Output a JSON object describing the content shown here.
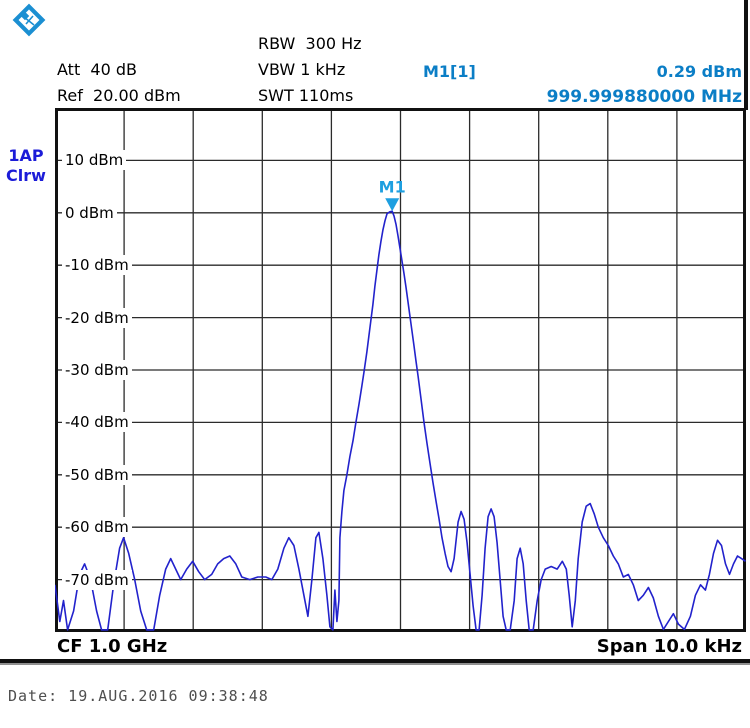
{
  "header": {
    "att": "Att  40 dB",
    "ref": "Ref  20.00 dBm",
    "rbw": "RBW  300 Hz",
    "vbw": "VBW 1 kHz",
    "swt": "SWT 110ms"
  },
  "marker_readout": {
    "name": "M1[1]",
    "amplitude": "0.29 dBm",
    "frequency": "999.999880000 MHz"
  },
  "trace_label": {
    "line1": "1AP",
    "line2": "Clrw"
  },
  "footer": {
    "cf": "CF 1.0 GHz",
    "span": "Span 10.0 kHz",
    "date": "Date: 19.AUG.2016  09:38:48"
  },
  "colors": {
    "trace": "#2222cc",
    "marker": "#1e9fe0",
    "marker_text": "#0b7ec6",
    "trace_label": "#1c1cd8",
    "grid": "#2b2b2b",
    "date_text": "#4f4f4f",
    "logo_blue": "#1b8fd2"
  },
  "icons": {
    "logo": "rohde-schwarz-logo"
  },
  "chart_data": {
    "type": "line",
    "title": "Spectrum analyzer sweep",
    "x_axis": {
      "center_label": "CF 1.0 GHz",
      "span_label": "Span 10.0 kHz",
      "span_hz": 10000,
      "divisions": 10,
      "grid": true
    },
    "y_axis": {
      "unit": "dBm",
      "ref_dbm": 20,
      "db_per_div": 10,
      "divisions": 10,
      "ylim": [
        -80,
        20
      ],
      "tick_labels": [
        {
          "dbm": 10,
          "label": "10 dBm"
        },
        {
          "dbm": 0,
          "label": "0 dBm"
        },
        {
          "dbm": -10,
          "label": "-10 dBm"
        },
        {
          "dbm": -20,
          "label": "-20 dBm"
        },
        {
          "dbm": -30,
          "label": "-30 dBm"
        },
        {
          "dbm": -40,
          "label": "-40 dBm"
        },
        {
          "dbm": -50,
          "label": "-50 dBm"
        },
        {
          "dbm": -60,
          "label": "-60 dBm"
        },
        {
          "dbm": -70,
          "label": "-70 dBm"
        }
      ]
    },
    "marker": {
      "id": "M1",
      "amplitude_dbm": 0.29,
      "offset_hz": -120
    },
    "series": [
      {
        "name": "1AP Clrw",
        "points": [
          [
            -5000,
            -71
          ],
          [
            -4930,
            -78
          ],
          [
            -4877,
            -74
          ],
          [
            -4818,
            -80
          ],
          [
            -4731,
            -76
          ],
          [
            -4644,
            -69
          ],
          [
            -4572,
            -67
          ],
          [
            -4485,
            -70
          ],
          [
            -4398,
            -76
          ],
          [
            -4325,
            -80
          ],
          [
            -4238,
            -80
          ],
          [
            -4152,
            -71
          ],
          [
            -4065,
            -64
          ],
          [
            -4007,
            -62
          ],
          [
            -3934,
            -65
          ],
          [
            -3847,
            -70
          ],
          [
            -3760,
            -76
          ],
          [
            -3673,
            -80
          ],
          [
            -3572,
            -80
          ],
          [
            -3485,
            -73
          ],
          [
            -3398,
            -68
          ],
          [
            -3325,
            -66
          ],
          [
            -3253,
            -68
          ],
          [
            -3181,
            -70
          ],
          [
            -3094,
            -68
          ],
          [
            -3007,
            -66.5
          ],
          [
            -2920,
            -68.5
          ],
          [
            -2833,
            -70
          ],
          [
            -2732,
            -69
          ],
          [
            -2645,
            -67
          ],
          [
            -2558,
            -66
          ],
          [
            -2471,
            -65.5
          ],
          [
            -2384,
            -67
          ],
          [
            -2297,
            -69.5
          ],
          [
            -2181,
            -70
          ],
          [
            -2065,
            -69.5
          ],
          [
            -1949,
            -69.5
          ],
          [
            -1862,
            -70
          ],
          [
            -1775,
            -68
          ],
          [
            -1688,
            -64
          ],
          [
            -1616,
            -62
          ],
          [
            -1543,
            -63.5
          ],
          [
            -1471,
            -68
          ],
          [
            -1398,
            -73
          ],
          [
            -1340,
            -77
          ],
          [
            -1282,
            -70
          ],
          [
            -1224,
            -62
          ],
          [
            -1181,
            -61
          ],
          [
            -1123,
            -66
          ],
          [
            -1065,
            -73
          ],
          [
            -1022,
            -79
          ],
          [
            -978,
            -80
          ],
          [
            -949,
            -72
          ],
          [
            -920,
            -78
          ],
          [
            -891,
            -74
          ],
          [
            -877,
            -62
          ],
          [
            -848,
            -57
          ],
          [
            -819,
            -53
          ],
          [
            -775,
            -50
          ],
          [
            -732,
            -46.5
          ],
          [
            -688,
            -43.5
          ],
          [
            -645,
            -40
          ],
          [
            -601,
            -36.5
          ],
          [
            -558,
            -33
          ],
          [
            -529,
            -30.5
          ],
          [
            -486,
            -26.5
          ],
          [
            -457,
            -23.5
          ],
          [
            -428,
            -20.5
          ],
          [
            -399,
            -17.5
          ],
          [
            -370,
            -14
          ],
          [
            -341,
            -11
          ],
          [
            -312,
            -8
          ],
          [
            -283,
            -5.5
          ],
          [
            -254,
            -3.3
          ],
          [
            -225,
            -1.5
          ],
          [
            -196,
            -0.2
          ],
          [
            -155,
            0.2
          ],
          [
            -120,
            0.29
          ],
          [
            -94,
            -0.6
          ],
          [
            -65,
            -2.2
          ],
          [
            -36,
            -4.4
          ],
          [
            -7,
            -6.8
          ],
          [
            22,
            -9.2
          ],
          [
            51,
            -11.6
          ],
          [
            80,
            -14.2
          ],
          [
            109,
            -17
          ],
          [
            138,
            -19.8
          ],
          [
            167,
            -22.6
          ],
          [
            196,
            -25.4
          ],
          [
            225,
            -28.3
          ],
          [
            254,
            -31.2
          ],
          [
            297,
            -35.5
          ],
          [
            340,
            -40
          ],
          [
            384,
            -44
          ],
          [
            427,
            -47.8
          ],
          [
            471,
            -51.5
          ],
          [
            514,
            -55
          ],
          [
            558,
            -58.5
          ],
          [
            601,
            -62
          ],
          [
            645,
            -65
          ],
          [
            688,
            -67.5
          ],
          [
            732,
            -68.5
          ],
          [
            775,
            -66
          ],
          [
            833,
            -59
          ],
          [
            877,
            -57
          ],
          [
            920,
            -58.5
          ],
          [
            964,
            -63
          ],
          [
            1007,
            -69
          ],
          [
            1051,
            -75
          ],
          [
            1094,
            -80
          ],
          [
            1138,
            -80
          ],
          [
            1181,
            -73
          ],
          [
            1224,
            -64
          ],
          [
            1268,
            -58
          ],
          [
            1311,
            -56.5
          ],
          [
            1355,
            -58
          ],
          [
            1398,
            -63
          ],
          [
            1442,
            -70
          ],
          [
            1485,
            -77
          ],
          [
            1529,
            -80
          ],
          [
            1587,
            -80
          ],
          [
            1645,
            -74
          ],
          [
            1688,
            -66
          ],
          [
            1732,
            -64
          ],
          [
            1775,
            -67
          ],
          [
            1819,
            -74
          ],
          [
            1862,
            -80
          ],
          [
            1920,
            -80
          ],
          [
            1978,
            -74
          ],
          [
            2036,
            -70
          ],
          [
            2094,
            -68
          ],
          [
            2181,
            -67.5
          ],
          [
            2268,
            -68
          ],
          [
            2341,
            -66.5
          ],
          [
            2399,
            -68
          ],
          [
            2442,
            -73
          ],
          [
            2485,
            -79
          ],
          [
            2529,
            -74
          ],
          [
            2572,
            -66
          ],
          [
            2630,
            -59
          ],
          [
            2688,
            -56
          ],
          [
            2746,
            -55.5
          ],
          [
            2804,
            -57.5
          ],
          [
            2862,
            -60
          ],
          [
            2935,
            -62
          ],
          [
            3007,
            -63.5
          ],
          [
            3080,
            -65.5
          ],
          [
            3152,
            -67
          ],
          [
            3225,
            -69.5
          ],
          [
            3297,
            -69
          ],
          [
            3369,
            -71
          ],
          [
            3442,
            -74
          ],
          [
            3514,
            -73
          ],
          [
            3587,
            -71.5
          ],
          [
            3659,
            -73.5
          ],
          [
            3732,
            -77
          ],
          [
            3804,
            -79.5
          ],
          [
            3877,
            -78
          ],
          [
            3949,
            -76.5
          ],
          [
            4022,
            -78.5
          ],
          [
            4109,
            -79.5
          ],
          [
            4196,
            -77
          ],
          [
            4268,
            -73
          ],
          [
            4341,
            -71
          ],
          [
            4413,
            -72
          ],
          [
            4471,
            -69
          ],
          [
            4529,
            -65
          ],
          [
            4587,
            -62.5
          ],
          [
            4645,
            -63.5
          ],
          [
            4703,
            -67
          ],
          [
            4761,
            -69
          ],
          [
            4819,
            -67
          ],
          [
            4877,
            -65.5
          ],
          [
            4935,
            -66
          ],
          [
            4993,
            -66.5
          ]
        ]
      }
    ]
  }
}
